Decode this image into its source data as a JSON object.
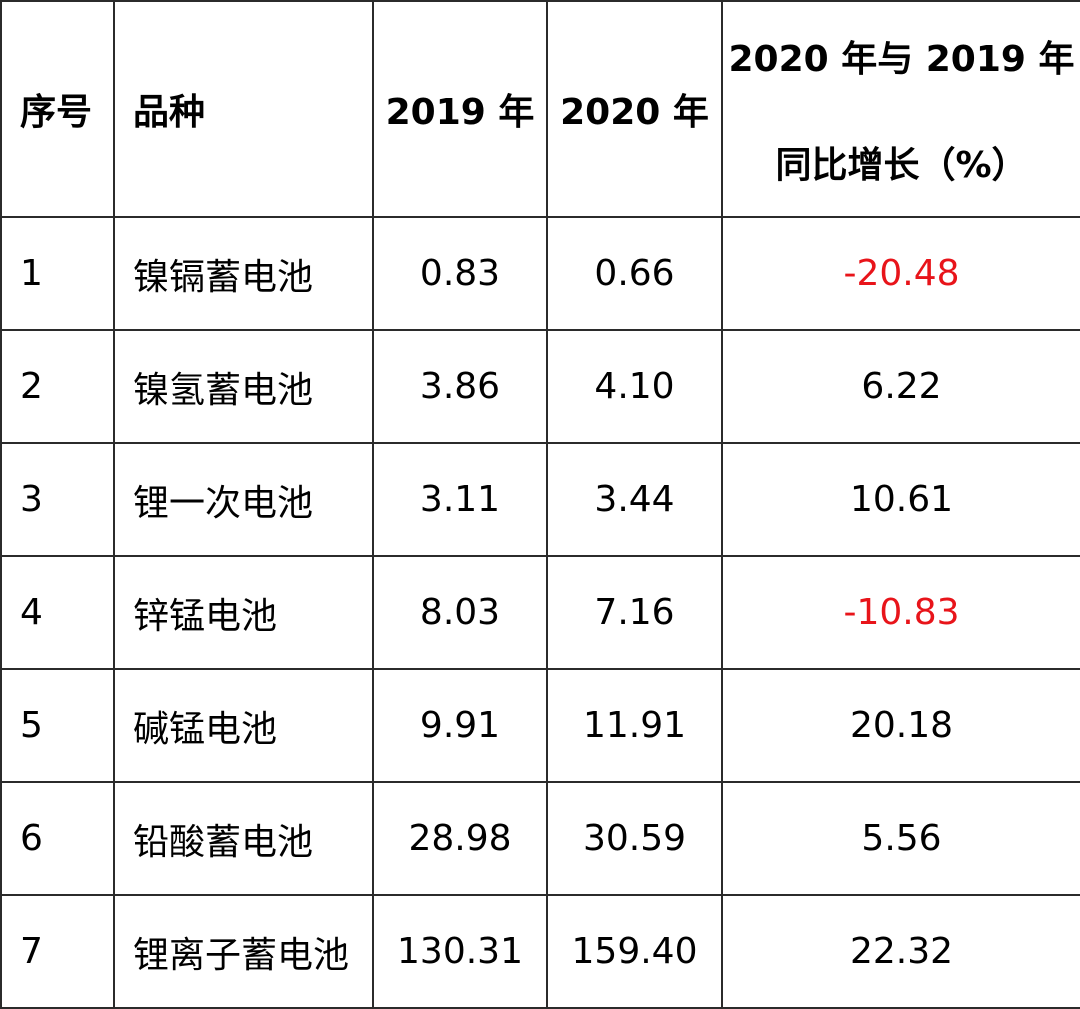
{
  "table": {
    "headers": {
      "index": "序号",
      "variety": "品种",
      "y2019": "2019 年",
      "y2020": "2020 年",
      "growth_line1": "2020 年与 2019 年",
      "growth_line2": "同比增长（%）"
    },
    "rows": [
      {
        "index": "1",
        "variety": "镍镉蓄电池",
        "y2019": "0.83",
        "y2020": "0.66",
        "growth": "-20.48",
        "negative": true
      },
      {
        "index": "2",
        "variety": "镍氢蓄电池",
        "y2019": "3.86",
        "y2020": "4.10",
        "growth": "6.22",
        "negative": false
      },
      {
        "index": "3",
        "variety": "锂一次电池",
        "y2019": "3.11",
        "y2020": "3.44",
        "growth": "10.61",
        "negative": false
      },
      {
        "index": "4",
        "variety": "锌锰电池",
        "y2019": "8.03",
        "y2020": "7.16",
        "growth": "-10.83",
        "negative": true
      },
      {
        "index": "5",
        "variety": "碱锰电池",
        "y2019": "9.91",
        "y2020": "11.91",
        "growth": "20.18",
        "negative": false
      },
      {
        "index": "6",
        "variety": "铅酸蓄电池",
        "y2019": "28.98",
        "y2020": "30.59",
        "growth": "5.56",
        "negative": false
      },
      {
        "index": "7",
        "variety": "锂离子蓄电池",
        "y2019": "130.31",
        "y2020": "159.40",
        "growth": "22.32",
        "negative": false
      }
    ],
    "colors": {
      "negative_text": "#e8141a",
      "text": "#000000",
      "border": "#2b2b2b"
    }
  }
}
